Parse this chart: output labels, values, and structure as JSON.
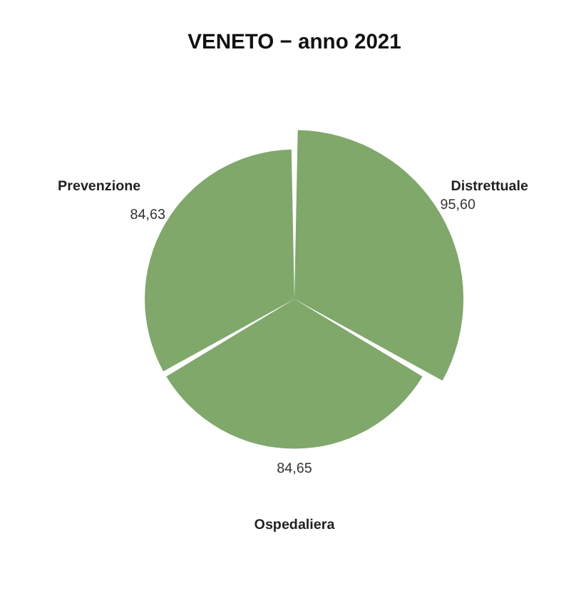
{
  "chart_data": {
    "type": "other",
    "title": "VENETO − anno 2021",
    "categories": [
      "Distrettuale",
      "Ospedaliera",
      "Prevenzione"
    ],
    "values": [
      95.6,
      84.65,
      84.63
    ],
    "value_labels": [
      "95,60",
      "84,65",
      "84,63"
    ],
    "color": "#7fa86a",
    "data_labels": true
  }
}
